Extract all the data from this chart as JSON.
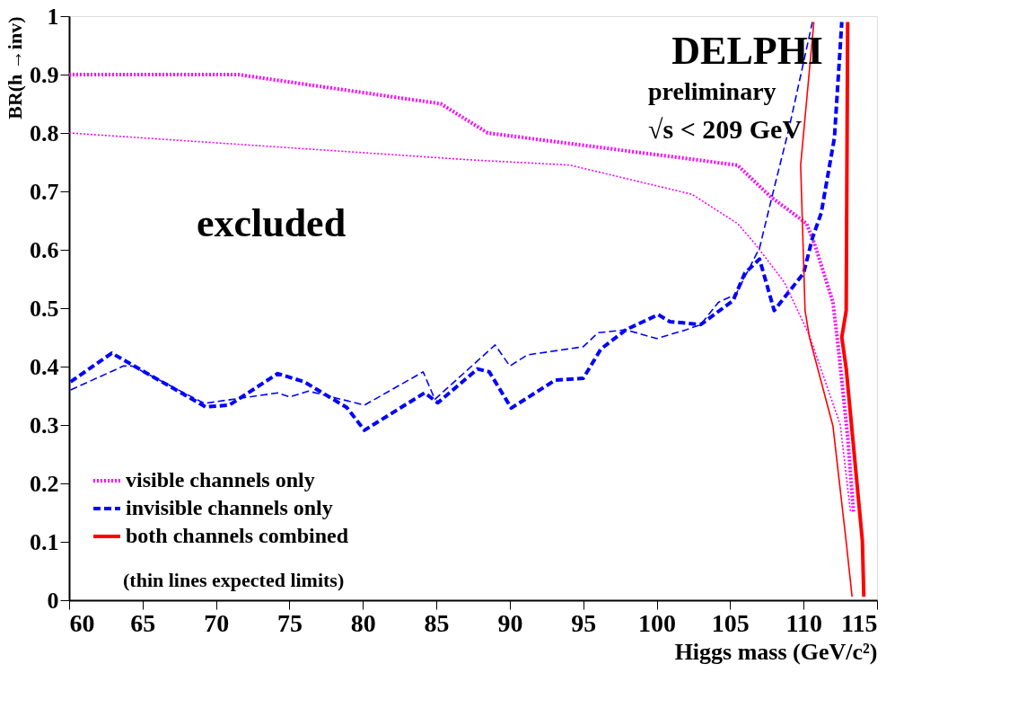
{
  "chart_data": {
    "type": "line",
    "xlabel": "Higgs mass (GeV/c²)",
    "ylabel": "BR(h →inv)",
    "xlim": [
      60,
      115
    ],
    "xticks": [
      60,
      65,
      70,
      75,
      80,
      85,
      90,
      95,
      100,
      105,
      110,
      115
    ],
    "ylim": [
      0,
      1
    ],
    "yticks": [
      0,
      0.1,
      0.2,
      0.3,
      0.4,
      0.5,
      0.6,
      0.7,
      0.8,
      0.9,
      1
    ],
    "grid": false,
    "legend": "bottom left",
    "marker": "none",
    "annotations": [
      "DELPHI",
      "preliminary",
      "√s < 209 GeV",
      "excluded",
      "(thin lines expected limits)"
    ],
    "series": [
      {
        "name": "visible channels only",
        "color": "#ff00ff",
        "line_style": "dotted",
        "x": [
          60,
          71.5,
          85.3,
          88.5,
          105.5,
          107.7,
          110.2,
          110.8,
          112,
          112.4,
          113,
          113.4
        ],
        "values": [
          0.9,
          0.9,
          0.85,
          0.8,
          0.745,
          0.692,
          0.645,
          0.606,
          0.51,
          0.424,
          0.28,
          0.15
        ]
      },
      {
        "name": "invisible channels only",
        "color": "#0000ff",
        "line_style": "dashed",
        "x": [
          60.1,
          62.9,
          69.3,
          70.9,
          74.2,
          76,
          78.9,
          80.1,
          84.2,
          85.1,
          87.8,
          88.6,
          90.1,
          93.1,
          95,
          96.2,
          97.9,
          100.1,
          100.9,
          103,
          105.2,
          106,
          107,
          108,
          110,
          110.6,
          111.2,
          112.1,
          112.6
        ],
        "values": [
          0.374,
          0.423,
          0.331,
          0.334,
          0.388,
          0.374,
          0.33,
          0.291,
          0.355,
          0.338,
          0.396,
          0.391,
          0.329,
          0.377,
          0.38,
          0.43,
          0.463,
          0.489,
          0.477,
          0.472,
          0.513,
          0.56,
          0.584,
          0.496,
          0.56,
          0.62,
          0.663,
          0.792,
          0.99
        ]
      },
      {
        "name": "both channels combined",
        "color": "#ff0000",
        "line_style": "solid",
        "x": [
          113,
          112.9,
          112.6,
          112.9,
          114,
          114.1
        ],
        "values": [
          0.99,
          0.496,
          0.45,
          0.397,
          0.102,
          0.006
        ]
      },
      {
        "color": "#ff00ff",
        "line_style": "dotted",
        "x": [
          60,
          87.3,
          94.1,
          102.4,
          105.5,
          106.7,
          108.7,
          110.4,
          112.5,
          113.2
        ],
        "values": [
          0.8,
          0.754,
          0.745,
          0.695,
          0.645,
          0.61,
          0.544,
          0.453,
          0.3,
          0.15
        ]
      },
      {
        "color": "#0000ff",
        "line_style": "dashed",
        "x": [
          60.1,
          63.7,
          64.3,
          69.2,
          74.2,
          75,
          76.3,
          80.1,
          84.1,
          84.9,
          89,
          90,
          91.2,
          95,
          96,
          97.9,
          100,
          102,
          103,
          104.2,
          105.4,
          107,
          107.9,
          109,
          110.6
        ],
        "values": [
          0.36,
          0.401,
          0.401,
          0.337,
          0.355,
          0.348,
          0.358,
          0.334,
          0.391,
          0.344,
          0.437,
          0.401,
          0.42,
          0.434,
          0.458,
          0.463,
          0.448,
          0.463,
          0.472,
          0.51,
          0.524,
          0.603,
          0.696,
          0.807,
          0.99
        ]
      },
      {
        "color": "#ff0000",
        "line_style": "solid",
        "x": [
          110.7,
          109.8,
          110.1,
          110.4,
          112,
          112.9,
          113.3
        ],
        "values": [
          0.99,
          0.745,
          0.496,
          0.45,
          0.298,
          0.1,
          0.006
        ]
      }
    ]
  }
}
